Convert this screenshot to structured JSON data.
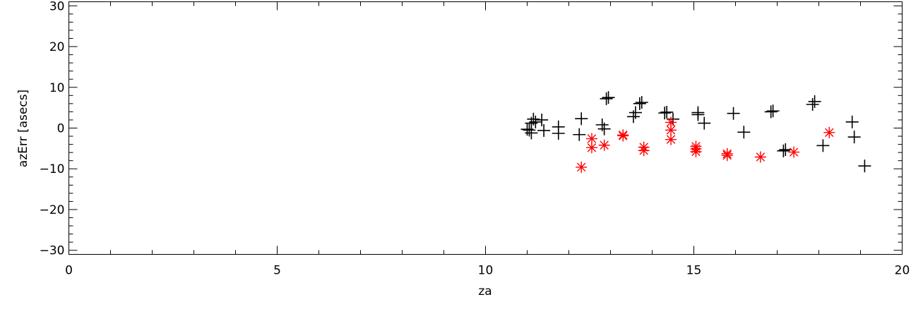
{
  "chart_data": {
    "type": "scatter",
    "xlabel": "za",
    "ylabel": "azErr [asecs]",
    "xlim": [
      0,
      20
    ],
    "ylim": [
      -31,
      31
    ],
    "x_ticks": [
      0,
      5,
      10,
      15,
      20
    ],
    "x_tick_labels": [
      "0",
      "5",
      "10",
      "15",
      "20"
    ],
    "y_ticks": [
      -30,
      -20,
      -10,
      0,
      10,
      20,
      30
    ],
    "y_tick_labels": [
      "−30",
      "−20",
      "−10",
      "0",
      "10",
      "20",
      "30"
    ],
    "grid": false,
    "series": [
      {
        "marker": "plus",
        "color": "#000000",
        "points": [
          [
            11.0,
            -0.3
          ],
          [
            11.05,
            -0.5
          ],
          [
            11.1,
            1.2
          ],
          [
            11.1,
            -1.2
          ],
          [
            11.15,
            2.2
          ],
          [
            11.2,
            1.5
          ],
          [
            11.35,
            2.0
          ],
          [
            11.4,
            -0.6
          ],
          [
            11.75,
            0.3
          ],
          [
            11.75,
            -1.3
          ],
          [
            12.25,
            -1.6
          ],
          [
            12.3,
            2.3
          ],
          [
            12.8,
            0.8
          ],
          [
            12.85,
            -0.2
          ],
          [
            12.9,
            7.2
          ],
          [
            12.95,
            7.5
          ],
          [
            13.55,
            2.8
          ],
          [
            13.6,
            3.8
          ],
          [
            13.7,
            6.0
          ],
          [
            13.75,
            6.3
          ],
          [
            14.3,
            3.7
          ],
          [
            14.35,
            3.9
          ],
          [
            14.5,
            2.2
          ],
          [
            15.1,
            3.8
          ],
          [
            15.1,
            3.3
          ],
          [
            15.25,
            1.2
          ],
          [
            15.95,
            3.6
          ],
          [
            16.2,
            -1.0
          ],
          [
            16.85,
            4.0
          ],
          [
            16.9,
            4.2
          ],
          [
            17.15,
            -5.6
          ],
          [
            17.2,
            -5.3
          ],
          [
            17.85,
            5.8
          ],
          [
            17.9,
            6.5
          ],
          [
            18.1,
            -4.3
          ],
          [
            18.8,
            1.5
          ],
          [
            18.85,
            -2.2
          ],
          [
            19.1,
            -9.3
          ]
        ]
      },
      {
        "marker": "asterisk",
        "color": "#ff0000",
        "points": [
          [
            12.3,
            -9.6
          ],
          [
            12.55,
            -2.6
          ],
          [
            12.55,
            -4.8
          ],
          [
            12.85,
            -4.2
          ],
          [
            13.3,
            -1.7
          ],
          [
            13.3,
            -1.9
          ],
          [
            13.8,
            -4.7
          ],
          [
            13.8,
            -5.5
          ],
          [
            14.45,
            -0.5
          ],
          [
            14.45,
            -2.8
          ],
          [
            14.45,
            1.4
          ],
          [
            15.05,
            -4.5
          ],
          [
            15.05,
            -5.8
          ],
          [
            15.05,
            -5.1
          ],
          [
            15.8,
            -6.3
          ],
          [
            15.8,
            -6.7
          ],
          [
            16.6,
            -7.1
          ],
          [
            17.4,
            -5.9
          ],
          [
            18.25,
            -1.1
          ]
        ]
      }
    ]
  }
}
